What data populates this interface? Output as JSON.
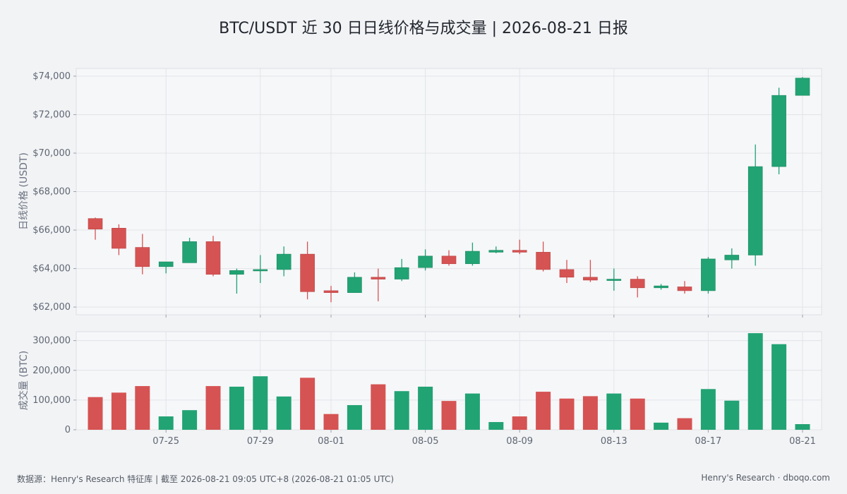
{
  "title": "BTC/USDT 近 30 日日线价格与成交量 | 2026-08-21 日报",
  "footer": {
    "source": "数据源：Henry's Research 特征库 | 截至 2026-08-21 09:05 UTC+8 (2026-08-21 01:05 UTC)",
    "brand": "Henry's Research · dboqo.com"
  },
  "colors": {
    "up": "#22a374",
    "down": "#d65353",
    "grid": "#e1e4e8",
    "panel_bg": "#f6f7f9"
  },
  "chart_data": {
    "type": "candlestick",
    "price_axis": {
      "label": "日线价格 (USDT)",
      "ylim": [
        61600,
        74400
      ],
      "ticks": [
        62000,
        64000,
        66000,
        68000,
        70000,
        72000,
        74000
      ],
      "tick_labels": [
        "$62,000",
        "$64,000",
        "$66,000",
        "$68,000",
        "$70,000",
        "$72,000",
        "$74,000"
      ]
    },
    "volume_axis": {
      "label": "成交量 (BTC)",
      "ylim": [
        0,
        330000
      ],
      "ticks": [
        0,
        100000,
        200000,
        300000
      ],
      "tick_labels": [
        "0",
        "100,000",
        "200,000",
        "300,000"
      ]
    },
    "x_ticks": [
      {
        "index": 3,
        "label": "07-25"
      },
      {
        "index": 7,
        "label": "07-29"
      },
      {
        "index": 10,
        "label": "08-01"
      },
      {
        "index": 14,
        "label": "08-05"
      },
      {
        "index": 18,
        "label": "08-09"
      },
      {
        "index": 22,
        "label": "08-13"
      },
      {
        "index": 26,
        "label": "08-17"
      },
      {
        "index": 30,
        "label": "08-21"
      }
    ],
    "grid": true,
    "candles": [
      {
        "date": "07-22",
        "open": 66600,
        "high": 66650,
        "low": 65500,
        "close": 66050,
        "volume": 110000
      },
      {
        "date": "07-23",
        "open": 66100,
        "high": 66300,
        "low": 64700,
        "close": 65050,
        "volume": 125000
      },
      {
        "date": "07-24",
        "open": 65100,
        "high": 65800,
        "low": 63700,
        "close": 64100,
        "volume": 147000
      },
      {
        "date": "07-25",
        "open": 64100,
        "high": 64350,
        "low": 63750,
        "close": 64350,
        "volume": 45000
      },
      {
        "date": "07-26",
        "open": 64300,
        "high": 65600,
        "low": 64300,
        "close": 65400,
        "volume": 66000
      },
      {
        "date": "07-27",
        "open": 65400,
        "high": 65700,
        "low": 63600,
        "close": 63700,
        "volume": 147000
      },
      {
        "date": "07-28",
        "open": 63700,
        "high": 64000,
        "low": 62700,
        "close": 63900,
        "volume": 145000
      },
      {
        "date": "07-29",
        "open": 63900,
        "high": 64700,
        "low": 63250,
        "close": 63950,
        "volume": 180000
      },
      {
        "date": "07-30",
        "open": 63950,
        "high": 65150,
        "low": 63600,
        "close": 64750,
        "volume": 112000
      },
      {
        "date": "07-31",
        "open": 64750,
        "high": 65400,
        "low": 62400,
        "close": 62800,
        "volume": 175000
      },
      {
        "date": "08-01",
        "open": 62850,
        "high": 63100,
        "low": 62250,
        "close": 62750,
        "volume": 53000
      },
      {
        "date": "08-02",
        "open": 62750,
        "high": 63800,
        "low": 62750,
        "close": 63550,
        "volume": 83000
      },
      {
        "date": "08-03",
        "open": 63550,
        "high": 64000,
        "low": 62300,
        "close": 63450,
        "volume": 153000
      },
      {
        "date": "08-04",
        "open": 63450,
        "high": 64500,
        "low": 63350,
        "close": 64050,
        "volume": 130000
      },
      {
        "date": "08-05",
        "open": 64050,
        "high": 65000,
        "low": 63900,
        "close": 64650,
        "volume": 145000
      },
      {
        "date": "08-06",
        "open": 64650,
        "high": 64950,
        "low": 64150,
        "close": 64250,
        "volume": 97000
      },
      {
        "date": "08-07",
        "open": 64250,
        "high": 65350,
        "low": 64150,
        "close": 64900,
        "volume": 122000
      },
      {
        "date": "08-08",
        "open": 64850,
        "high": 65150,
        "low": 64800,
        "close": 64950,
        "volume": 26000
      },
      {
        "date": "08-09",
        "open": 64950,
        "high": 65500,
        "low": 64750,
        "close": 64850,
        "volume": 45000
      },
      {
        "date": "08-10",
        "open": 64850,
        "high": 65400,
        "low": 63850,
        "close": 63950,
        "volume": 128000
      },
      {
        "date": "08-11",
        "open": 63950,
        "high": 64450,
        "low": 63250,
        "close": 63550,
        "volume": 105000
      },
      {
        "date": "08-12",
        "open": 63550,
        "high": 64450,
        "low": 63300,
        "close": 63400,
        "volume": 113000
      },
      {
        "date": "08-13",
        "open": 63400,
        "high": 64000,
        "low": 62850,
        "close": 63450,
        "volume": 122000
      },
      {
        "date": "08-14",
        "open": 63450,
        "high": 63600,
        "low": 62500,
        "close": 63000,
        "volume": 105000
      },
      {
        "date": "08-15",
        "open": 63000,
        "high": 63200,
        "low": 62900,
        "close": 63100,
        "volume": 24000
      },
      {
        "date": "08-16",
        "open": 63050,
        "high": 63350,
        "low": 62700,
        "close": 62850,
        "volume": 39000
      },
      {
        "date": "08-17",
        "open": 62850,
        "high": 64600,
        "low": 62700,
        "close": 64500,
        "volume": 137000
      },
      {
        "date": "08-18",
        "open": 64450,
        "high": 65050,
        "low": 64000,
        "close": 64700,
        "volume": 98000
      },
      {
        "date": "08-19",
        "open": 64700,
        "high": 70450,
        "low": 64150,
        "close": 69300,
        "volume": 325000
      },
      {
        "date": "08-20",
        "open": 69300,
        "high": 73400,
        "low": 68900,
        "close": 73000,
        "volume": 288000
      },
      {
        "date": "08-21",
        "open": 73000,
        "high": 73950,
        "low": 73000,
        "close": 73900,
        "volume": 19000
      }
    ]
  }
}
